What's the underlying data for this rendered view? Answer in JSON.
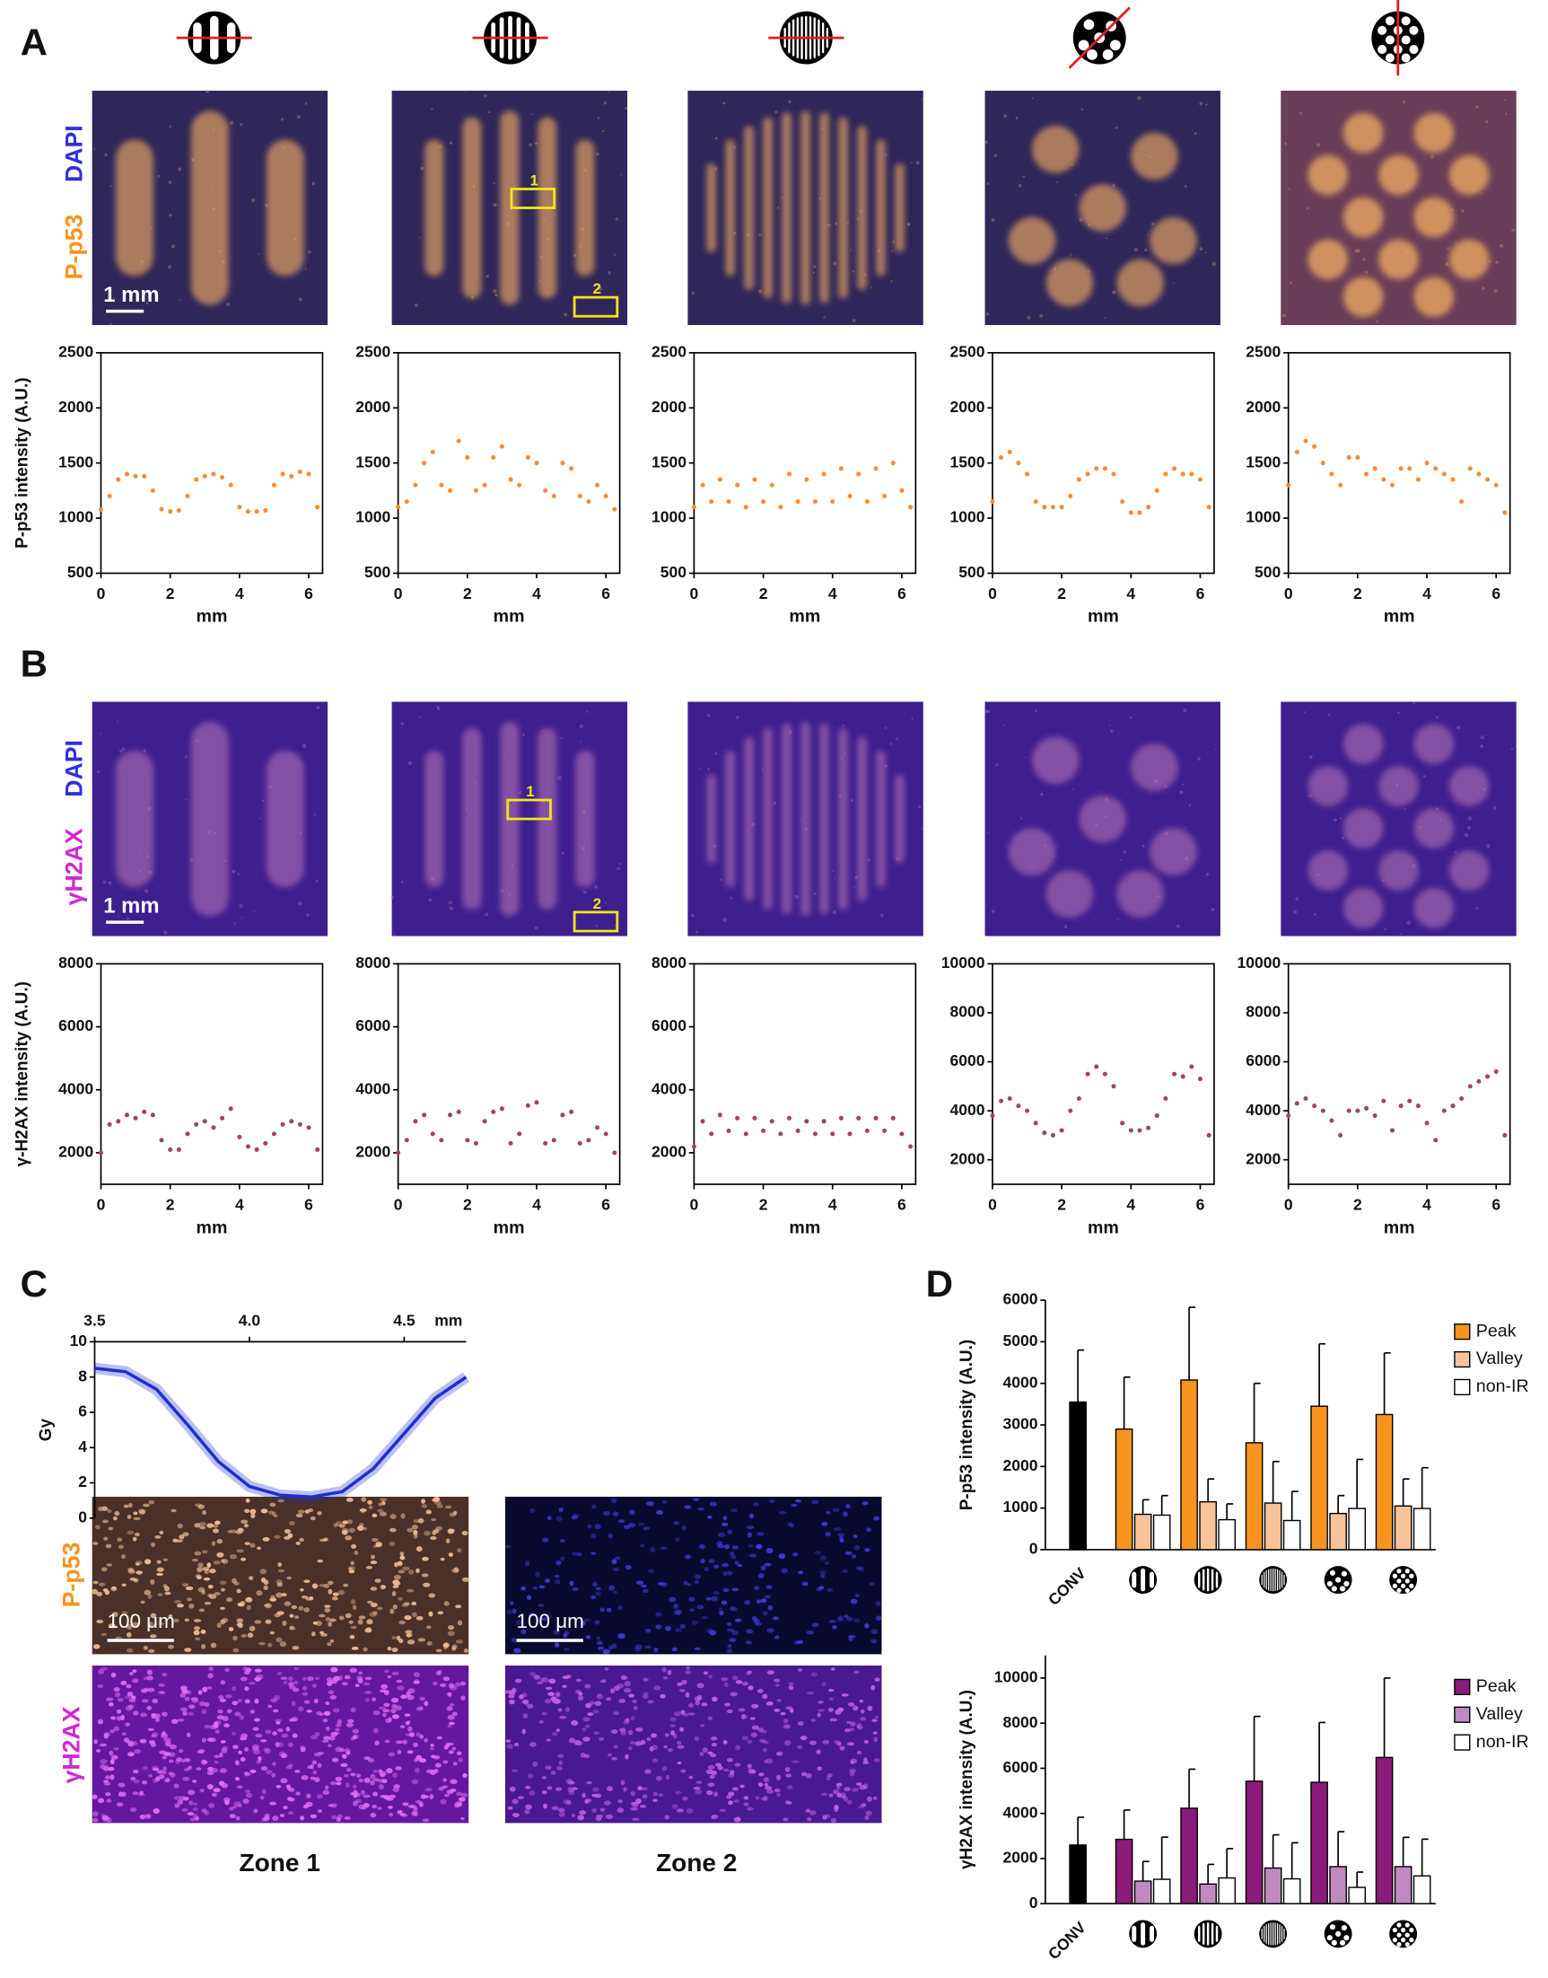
{
  "figure": {
    "panel_labels": [
      "A",
      "B",
      "C",
      "D"
    ],
    "panel_a": {
      "stain": "P-p53",
      "counterstain": "DAPI",
      "scale_bar": "1 mm",
      "regions": [
        "1",
        "2"
      ]
    },
    "panel_b": {
      "stain": "γH2AX",
      "counterstain": "DAPI",
      "scale_bar": "1 mm",
      "regions": [
        "1",
        "2"
      ]
    },
    "panel_c": {
      "stains": [
        "P-p53",
        "γH2AX"
      ],
      "scale_bars": [
        "100 μm",
        "100 μm"
      ],
      "zones": [
        "Zone 1",
        "Zone 2"
      ]
    }
  },
  "chart_data": [
    {
      "type": "scatter",
      "xlabel": "mm",
      "ylabel": "P-p53 intensity (A.U.)",
      "color": "#f28c38",
      "x": [
        0,
        0.25,
        0.5,
        0.75,
        1,
        1.25,
        1.5,
        1.75,
        2,
        2.25,
        2.5,
        2.75,
        3,
        3.25,
        3.5,
        3.75,
        4,
        4.25,
        4.5,
        4.75,
        5,
        5.25,
        5.5,
        5.75,
        6,
        6.25
      ],
      "values": [
        1080,
        1200,
        1350,
        1400,
        1380,
        1380,
        1250,
        1080,
        1060,
        1070,
        1200,
        1350,
        1380,
        1400,
        1370,
        1300,
        1100,
        1060,
        1060,
        1070,
        1300,
        1400,
        1380,
        1420,
        1400,
        1100
      ],
      "xlim": [
        0,
        6.4
      ],
      "xticks": [
        0,
        2,
        4,
        6
      ],
      "ylim": [
        500,
        2500
      ],
      "yticks": [
        500,
        1000,
        1500,
        2000,
        2500
      ]
    },
    {
      "type": "scatter",
      "xlabel": "mm",
      "color": "#f28c38",
      "x": [
        0,
        0.25,
        0.5,
        0.75,
        1,
        1.25,
        1.5,
        1.75,
        2,
        2.25,
        2.5,
        2.75,
        3,
        3.25,
        3.5,
        3.75,
        4,
        4.25,
        4.5,
        4.75,
        5,
        5.25,
        5.5,
        5.75,
        6,
        6.25
      ],
      "values": [
        1100,
        1150,
        1300,
        1500,
        1600,
        1300,
        1250,
        1700,
        1550,
        1250,
        1300,
        1550,
        1650,
        1350,
        1300,
        1550,
        1500,
        1250,
        1200,
        1500,
        1450,
        1200,
        1150,
        1300,
        1200,
        1080
      ],
      "xlim": [
        0,
        6.4
      ],
      "xticks": [
        0,
        2,
        4,
        6
      ],
      "ylim": [
        500,
        2500
      ],
      "yticks": [
        500,
        1000,
        1500,
        2000,
        2500
      ]
    },
    {
      "type": "scatter",
      "xlabel": "mm",
      "color": "#f28c38",
      "x": [
        0,
        0.25,
        0.5,
        0.75,
        1,
        1.25,
        1.5,
        1.75,
        2,
        2.25,
        2.5,
        2.75,
        3,
        3.25,
        3.5,
        3.75,
        4,
        4.25,
        4.5,
        4.75,
        5,
        5.25,
        5.5,
        5.75,
        6,
        6.25
      ],
      "values": [
        1100,
        1300,
        1150,
        1350,
        1150,
        1300,
        1100,
        1350,
        1150,
        1300,
        1100,
        1400,
        1150,
        1350,
        1150,
        1400,
        1150,
        1450,
        1200,
        1400,
        1150,
        1450,
        1200,
        1500,
        1250,
        1100
      ],
      "xlim": [
        0,
        6.4
      ],
      "xticks": [
        0,
        2,
        4,
        6
      ],
      "ylim": [
        500,
        2500
      ],
      "yticks": [
        500,
        1000,
        1500,
        2000,
        2500
      ]
    },
    {
      "type": "scatter",
      "xlabel": "mm",
      "color": "#f28c38",
      "x": [
        0,
        0.25,
        0.5,
        0.75,
        1,
        1.25,
        1.5,
        1.75,
        2,
        2.25,
        2.5,
        2.75,
        3,
        3.25,
        3.5,
        3.75,
        4,
        4.25,
        4.5,
        4.75,
        5,
        5.25,
        5.5,
        5.75,
        6,
        6.25
      ],
      "values": [
        1150,
        1550,
        1600,
        1500,
        1400,
        1150,
        1100,
        1100,
        1100,
        1200,
        1350,
        1400,
        1450,
        1450,
        1400,
        1150,
        1050,
        1050,
        1100,
        1250,
        1400,
        1450,
        1400,
        1400,
        1350,
        1100
      ],
      "xlim": [
        0,
        6.4
      ],
      "xticks": [
        0,
        2,
        4,
        6
      ],
      "ylim": [
        500,
        2500
      ],
      "yticks": [
        500,
        1000,
        1500,
        2000,
        2500
      ]
    },
    {
      "type": "scatter",
      "xlabel": "mm",
      "color": "#f28c38",
      "x": [
        0,
        0.25,
        0.5,
        0.75,
        1,
        1.25,
        1.5,
        1.75,
        2,
        2.25,
        2.5,
        2.75,
        3,
        3.25,
        3.5,
        3.75,
        4,
        4.25,
        4.5,
        4.75,
        5,
        5.25,
        5.5,
        5.75,
        6,
        6.25
      ],
      "values": [
        1300,
        1600,
        1700,
        1650,
        1500,
        1400,
        1300,
        1550,
        1550,
        1400,
        1450,
        1350,
        1300,
        1450,
        1450,
        1350,
        1500,
        1450,
        1400,
        1350,
        1150,
        1450,
        1400,
        1350,
        1300,
        1050
      ],
      "xlim": [
        0,
        6.4
      ],
      "xticks": [
        0,
        2,
        4,
        6
      ],
      "ylim": [
        500,
        2500
      ],
      "yticks": [
        500,
        1000,
        1500,
        2000,
        2500
      ]
    },
    {
      "type": "scatter",
      "xlabel": "mm",
      "ylabel": "γ-H2AX intensity (A.U.)",
      "color": "#a0426e",
      "x": [
        0,
        0.25,
        0.5,
        0.75,
        1,
        1.25,
        1.5,
        1.75,
        2,
        2.25,
        2.5,
        2.75,
        3,
        3.25,
        3.5,
        3.75,
        4,
        4.25,
        4.5,
        4.75,
        5,
        5.25,
        5.5,
        5.75,
        6,
        6.25
      ],
      "values": [
        2000,
        2900,
        3000,
        3200,
        3100,
        3300,
        3200,
        2400,
        2100,
        2100,
        2600,
        2900,
        3000,
        2800,
        3100,
        3400,
        2500,
        2200,
        2100,
        2300,
        2600,
        2900,
        3000,
        2900,
        2800,
        2100
      ],
      "xlim": [
        0,
        6.4
      ],
      "xticks": [
        0,
        2,
        4,
        6
      ],
      "ylim": [
        1000,
        8000
      ],
      "yticks": [
        2000,
        4000,
        6000,
        8000
      ]
    },
    {
      "type": "scatter",
      "xlabel": "mm",
      "color": "#a0426e",
      "x": [
        0,
        0.25,
        0.5,
        0.75,
        1,
        1.25,
        1.5,
        1.75,
        2,
        2.25,
        2.5,
        2.75,
        3,
        3.25,
        3.5,
        3.75,
        4,
        4.25,
        4.5,
        4.75,
        5,
        5.25,
        5.5,
        5.75,
        6,
        6.25
      ],
      "values": [
        2000,
        2400,
        3000,
        3200,
        2600,
        2400,
        3200,
        3300,
        2400,
        2300,
        3000,
        3300,
        3400,
        2300,
        2600,
        3500,
        3600,
        2300,
        2400,
        3200,
        3300,
        2300,
        2400,
        2800,
        2600,
        2000
      ],
      "xlim": [
        0,
        6.4
      ],
      "xticks": [
        0,
        2,
        4,
        6
      ],
      "ylim": [
        1000,
        8000
      ],
      "yticks": [
        2000,
        4000,
        6000,
        8000
      ]
    },
    {
      "type": "scatter",
      "xlabel": "mm",
      "color": "#a0426e",
      "x": [
        0,
        0.25,
        0.5,
        0.75,
        1,
        1.25,
        1.5,
        1.75,
        2,
        2.25,
        2.5,
        2.75,
        3,
        3.25,
        3.5,
        3.75,
        4,
        4.25,
        4.5,
        4.75,
        5,
        5.25,
        5.5,
        5.75,
        6,
        6.25
      ],
      "values": [
        2200,
        3000,
        2600,
        3200,
        2700,
        3100,
        2600,
        3100,
        2700,
        3000,
        2600,
        3100,
        2700,
        3000,
        2600,
        3000,
        2600,
        3100,
        2600,
        3100,
        2700,
        3100,
        2700,
        3100,
        2600,
        2200
      ],
      "xlim": [
        0,
        6.4
      ],
      "xticks": [
        0,
        2,
        4,
        6
      ],
      "ylim": [
        1000,
        8000
      ],
      "yticks": [
        2000,
        4000,
        6000,
        8000
      ]
    },
    {
      "type": "scatter",
      "xlabel": "mm",
      "color": "#a0426e",
      "x": [
        0,
        0.25,
        0.5,
        0.75,
        1,
        1.25,
        1.5,
        1.75,
        2,
        2.25,
        2.5,
        2.75,
        3,
        3.25,
        3.5,
        3.75,
        4,
        4.25,
        4.5,
        4.75,
        5,
        5.25,
        5.5,
        5.75,
        6,
        6.25
      ],
      "values": [
        3800,
        4400,
        4500,
        4200,
        4000,
        3500,
        3100,
        3000,
        3200,
        4000,
        4500,
        5500,
        5800,
        5500,
        5000,
        3500,
        3200,
        3200,
        3300,
        3800,
        4500,
        5500,
        5400,
        5800,
        5300,
        3000
      ],
      "xlim": [
        0,
        6.4
      ],
      "xticks": [
        0,
        2,
        4,
        6
      ],
      "ylim": [
        1000,
        10000
      ],
      "yticks": [
        2000,
        4000,
        6000,
        8000,
        10000
      ]
    },
    {
      "type": "scatter",
      "xlabel": "mm",
      "color": "#a0426e",
      "x": [
        0,
        0.25,
        0.5,
        0.75,
        1,
        1.25,
        1.5,
        1.75,
        2,
        2.25,
        2.5,
        2.75,
        3,
        3.25,
        3.5,
        3.75,
        4,
        4.25,
        4.5,
        4.75,
        5,
        5.25,
        5.5,
        5.75,
        6,
        6.25
      ],
      "values": [
        3800,
        4300,
        4500,
        4200,
        4000,
        3600,
        3000,
        4000,
        4000,
        4100,
        3800,
        4400,
        3200,
        4200,
        4400,
        4200,
        3500,
        2800,
        4000,
        4200,
        4500,
        5000,
        5200,
        5400,
        5600,
        3000
      ],
      "xlim": [
        0,
        6.4
      ],
      "xticks": [
        0,
        2,
        4,
        6
      ],
      "ylim": [
        1000,
        10000
      ],
      "yticks": [
        2000,
        4000,
        6000,
        8000,
        10000
      ]
    },
    {
      "type": "line",
      "xlabel": "mm",
      "ylabel": "Gy",
      "color": "#1f2ed0",
      "x": [
        3.5,
        3.6,
        3.7,
        3.8,
        3.9,
        4.0,
        4.1,
        4.2,
        4.3,
        4.4,
        4.5,
        4.6,
        4.7
      ],
      "values": [
        8.5,
        8.3,
        7.3,
        5.3,
        3.2,
        1.8,
        1.3,
        1.2,
        1.5,
        2.8,
        4.8,
        6.8,
        8.0
      ],
      "xlim": [
        3.5,
        4.7
      ],
      "xticks": [
        3.5,
        {
          "value": 4,
          "label": "4.0"
        },
        4.5
      ],
      "ylim": [
        0,
        10
      ],
      "yticks": [
        0,
        2,
        4,
        6,
        8,
        10
      ]
    },
    {
      "type": "bar",
      "ylabel": "P-p53 intensity (A.U.)",
      "legend": "upper right",
      "categories": [
        "CONV",
        null,
        null,
        null,
        null,
        null
      ],
      "series": [
        {
          "name": "Peak",
          "color": "#f7931e",
          "colors": [
            "#000000",
            "#f7931e",
            "#f7931e",
            "#f7931e",
            "#f7931e",
            "#f7931e"
          ],
          "values": [
            3550,
            2900,
            4080,
            2570,
            3450,
            3250
          ],
          "errors": [
            1250,
            1250,
            1750,
            1430,
            1500,
            1480
          ]
        },
        {
          "name": "Valley",
          "color": "#f9c39a",
          "values": [
            null,
            850,
            1150,
            1120,
            870,
            1050
          ],
          "errors": [
            null,
            350,
            550,
            1000,
            430,
            650
          ]
        },
        {
          "name": "non-IR",
          "color": "#ffffff",
          "values": [
            null,
            830,
            720,
            700,
            990,
            990
          ],
          "errors": [
            null,
            470,
            380,
            700,
            1180,
            980
          ]
        }
      ],
      "ylim": [
        0,
        6000
      ],
      "yticks": [
        0,
        1000,
        2000,
        3000,
        4000,
        5000,
        6000
      ]
    },
    {
      "type": "bar",
      "ylabel": "γH2AX intensity (A.U.)",
      "legend": "upper right",
      "categories": [
        "CONV",
        null,
        null,
        null,
        null,
        null
      ],
      "series": [
        {
          "name": "Peak",
          "color": "#8b1a7a",
          "colors": [
            "#000000",
            "#8b1a7a",
            "#8b1a7a",
            "#8b1a7a",
            "#8b1a7a",
            "#8b1a7a"
          ],
          "values": [
            2600,
            2850,
            4230,
            5430,
            5380,
            6480
          ],
          "errors": [
            1230,
            1300,
            1730,
            2870,
            2650,
            3520
          ]
        },
        {
          "name": "Valley",
          "color": "#c08ac0",
          "values": [
            null,
            1000,
            870,
            1580,
            1640,
            1640
          ],
          "errors": [
            null,
            870,
            870,
            1470,
            1550,
            1300
          ]
        },
        {
          "name": "non-IR",
          "color": "#ffffff",
          "values": [
            null,
            1080,
            1140,
            1100,
            720,
            1230
          ],
          "errors": [
            null,
            1870,
            1300,
            1600,
            680,
            1630
          ]
        }
      ],
      "ylim": [
        0,
        11000
      ],
      "yticks": [
        0,
        2000,
        4000,
        6000,
        8000,
        10000
      ]
    }
  ]
}
